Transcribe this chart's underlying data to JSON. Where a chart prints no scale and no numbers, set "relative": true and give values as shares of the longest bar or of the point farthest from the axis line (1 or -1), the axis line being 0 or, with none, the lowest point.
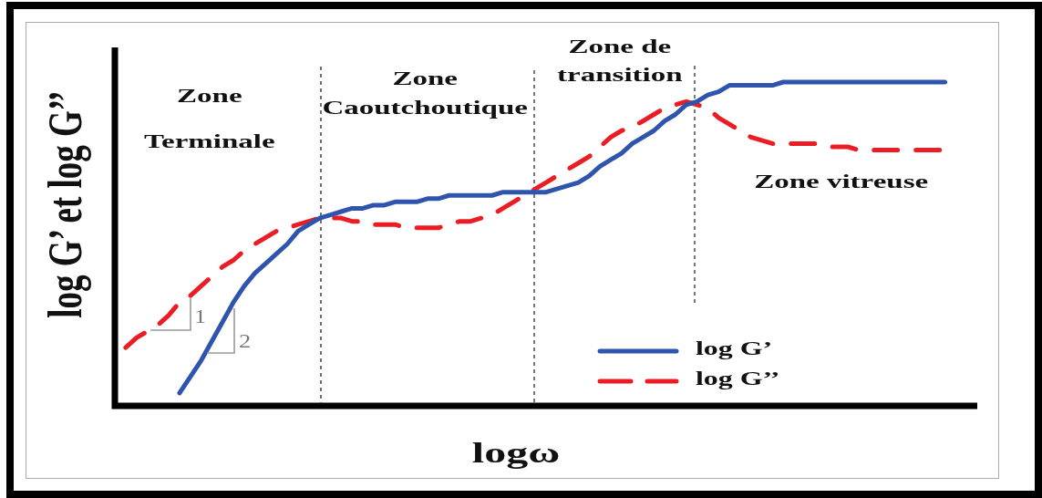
{
  "chart_data": {
    "type": "line",
    "relative": true,
    "tick_labels": false,
    "grid": false,
    "marker": "none",
    "legend": "bottom right",
    "xlabel": "logω",
    "ylabel": "log G’ et log G’’",
    "categories": [
      null,
      null,
      null,
      null,
      null,
      null,
      null,
      null,
      null,
      null,
      null,
      null,
      null,
      null,
      null,
      null,
      null,
      null,
      null,
      null,
      null,
      null,
      null,
      null,
      null,
      null,
      null,
      null,
      null,
      null,
      null,
      null,
      null,
      null,
      null,
      null,
      null,
      null,
      null,
      null,
      null,
      null,
      null,
      null,
      null,
      null,
      null,
      null,
      null,
      null,
      null,
      null,
      null,
      null,
      null,
      null,
      null,
      null,
      null,
      null,
      null,
      null,
      null,
      null,
      null,
      null,
      null,
      null,
      null,
      null,
      null,
      null,
      null,
      null,
      null,
      null,
      null,
      null,
      null,
      null,
      null
    ],
    "series": [
      {
        "name": "log G’",
        "color": "#2e54ad",
        "line_style": "solid",
        "values": [
          null,
          null,
          null,
          null,
          null,
          null,
          0.04,
          0.09,
          0.14,
          0.2,
          0.26,
          0.32,
          0.37,
          0.41,
          0.44,
          0.47,
          0.5,
          0.54,
          0.56,
          0.58,
          0.59,
          0.6,
          0.61,
          0.61,
          0.62,
          0.62,
          0.63,
          0.63,
          0.63,
          0.64,
          0.64,
          0.65,
          0.65,
          0.65,
          0.65,
          0.65,
          0.66,
          0.66,
          0.66,
          0.66,
          0.66,
          0.67,
          0.68,
          0.69,
          0.71,
          0.74,
          0.76,
          0.78,
          0.81,
          0.83,
          0.85,
          0.88,
          0.9,
          0.93,
          0.94,
          0.96,
          0.97,
          0.99,
          0.99,
          0.99,
          0.99,
          0.99,
          1,
          1,
          1,
          1,
          1,
          1,
          1,
          1,
          1,
          1,
          1,
          1,
          1,
          1,
          1,
          1,
          null,
          null,
          null
        ]
      },
      {
        "name": "log G’’",
        "color": "#ec1c24",
        "line_style": "dashed",
        "values": [
          null,
          0.18,
          0.21,
          0.23,
          0.25,
          0.28,
          0.32,
          0.34,
          0.37,
          0.4,
          0.43,
          0.45,
          0.48,
          0.5,
          0.52,
          0.54,
          0.55,
          0.56,
          0.57,
          0.58,
          0.58,
          0.58,
          0.57,
          0.57,
          0.56,
          0.56,
          0.56,
          0.55,
          0.55,
          0.55,
          0.55,
          0.56,
          0.57,
          0.57,
          0.58,
          0.59,
          0.61,
          0.63,
          0.65,
          0.67,
          0.69,
          0.71,
          0.73,
          0.75,
          0.77,
          0.8,
          0.83,
          0.85,
          0.86,
          0.88,
          0.9,
          0.92,
          0.93,
          0.94,
          0.93,
          0.92,
          0.89,
          0.87,
          0.85,
          0.83,
          0.82,
          0.81,
          0.81,
          0.81,
          0.81,
          0.81,
          0.8,
          0.8,
          0.8,
          0.79,
          0.79,
          0.79,
          0.79,
          0.79,
          0.79,
          0.79,
          0.79,
          0.79,
          null,
          null,
          null
        ]
      }
    ],
    "annotations": [
      "Zone Terminale",
      "Zone Caoutchoutique",
      "Zone de transition",
      "Zone vitreuse",
      "1",
      "2"
    ]
  }
}
